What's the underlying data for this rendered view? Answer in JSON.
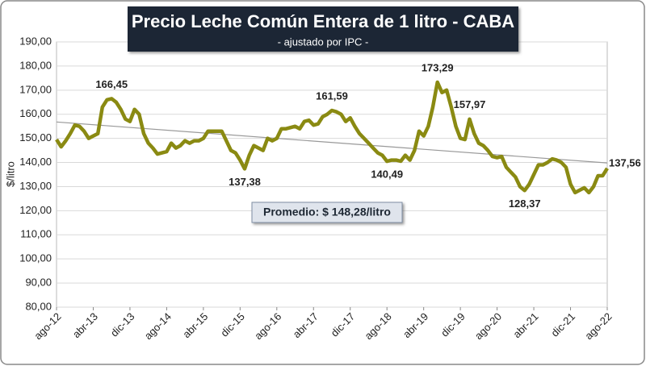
{
  "chart_data": {
    "type": "line",
    "title": "Precio Leche Común Entera de 1 litro - CABA",
    "subtitle": "- ajustado por IPC -",
    "y_label": "$/litro",
    "average_label": "Promedio: $ 148,28/litro",
    "color": "#8a8a12",
    "trend_color": "#999999",
    "trendline": [
      156.8,
      139.8
    ],
    "grid": true,
    "ylim": [
      80,
      190
    ],
    "yticks": [
      {
        "value": 80,
        "label": "80,00"
      },
      {
        "value": 90,
        "label": "90,00"
      },
      {
        "value": 100,
        "label": "100,00"
      },
      {
        "value": 110,
        "label": "110,00"
      },
      {
        "value": 120,
        "label": "120,00"
      },
      {
        "value": 130,
        "label": "130,00"
      },
      {
        "value": 140,
        "label": "140,00"
      },
      {
        "value": 150,
        "label": "150,00"
      },
      {
        "value": 160,
        "label": "160,00"
      },
      {
        "value": 170,
        "label": "170,00"
      },
      {
        "value": 180,
        "label": "180,00"
      },
      {
        "value": 190,
        "label": "190,00"
      }
    ],
    "categories": [
      "ago-12",
      null,
      null,
      null,
      null,
      null,
      null,
      null,
      "abr-13",
      null,
      null,
      null,
      null,
      null,
      null,
      null,
      "dic-13",
      null,
      null,
      null,
      null,
      null,
      null,
      null,
      "ago-14",
      null,
      null,
      null,
      null,
      null,
      null,
      null,
      "abr-15",
      null,
      null,
      null,
      null,
      null,
      null,
      null,
      "dic-15",
      null,
      null,
      null,
      null,
      null,
      null,
      null,
      "ago-16",
      null,
      null,
      null,
      null,
      null,
      null,
      null,
      "abr-17",
      null,
      null,
      null,
      null,
      null,
      null,
      null,
      "dic-17",
      null,
      null,
      null,
      null,
      null,
      null,
      null,
      "ago-18",
      null,
      null,
      null,
      null,
      null,
      null,
      null,
      "abr-19",
      null,
      null,
      null,
      null,
      null,
      null,
      null,
      "dic-19",
      null,
      null,
      null,
      null,
      null,
      null,
      null,
      "ago-20",
      null,
      null,
      null,
      null,
      null,
      null,
      null,
      "abr-21",
      null,
      null,
      null,
      null,
      null,
      null,
      null,
      "dic-21",
      null,
      null,
      null,
      null,
      null,
      null,
      null,
      "ago-22"
    ],
    "values": [
      149.5,
      146.5,
      149,
      152,
      155.5,
      155,
      153,
      150,
      151,
      152,
      163,
      166,
      166.45,
      165,
      162,
      158,
      157,
      162,
      160,
      152,
      148,
      146,
      143.5,
      144,
      144.5,
      148,
      146,
      147,
      149,
      148,
      149,
      149,
      150,
      153,
      153,
      153,
      153,
      149,
      145,
      144,
      141,
      137.38,
      143,
      147,
      146,
      145,
      150,
      149,
      150,
      154,
      154,
      154.5,
      155,
      154,
      157,
      157.5,
      155.5,
      156,
      159,
      160,
      161.59,
      161,
      160,
      157,
      158.5,
      155,
      152,
      150,
      148,
      146,
      144,
      143,
      140.49,
      141,
      141,
      140.5,
      143,
      141,
      145,
      153,
      151,
      155,
      163,
      173.29,
      169,
      170,
      163,
      155,
      150,
      149.5,
      157.97,
      152,
      148,
      147,
      145,
      142.5,
      142,
      142.5,
      138,
      136,
      134,
      130,
      128.37,
      131,
      135,
      139,
      139,
      140,
      141.5,
      141,
      140,
      138,
      131,
      127.5,
      128.5,
      129.5,
      127.5,
      130,
      134.5,
      134.5,
      137.56
    ],
    "value_labels": [
      null,
      null,
      null,
      null,
      null,
      null,
      null,
      null,
      null,
      null,
      null,
      null,
      "166,45",
      null,
      null,
      null,
      null,
      null,
      null,
      null,
      null,
      null,
      null,
      null,
      null,
      null,
      null,
      null,
      null,
      null,
      null,
      null,
      null,
      null,
      null,
      null,
      null,
      null,
      null,
      null,
      null,
      "137,38",
      null,
      null,
      null,
      null,
      null,
      null,
      null,
      null,
      null,
      null,
      null,
      null,
      null,
      null,
      null,
      null,
      null,
      null,
      "161,59",
      null,
      null,
      null,
      null,
      null,
      null,
      null,
      null,
      null,
      null,
      null,
      "140,49",
      null,
      null,
      null,
      null,
      null,
      null,
      null,
      null,
      null,
      null,
      "173,29",
      null,
      null,
      null,
      null,
      null,
      null,
      "157,97",
      null,
      null,
      null,
      null,
      null,
      null,
      null,
      null,
      null,
      null,
      null,
      "128,37",
      null,
      null,
      null,
      null,
      null,
      null,
      null,
      null,
      null,
      null,
      null,
      null,
      null,
      null,
      null,
      null,
      null,
      "137,56"
    ]
  }
}
